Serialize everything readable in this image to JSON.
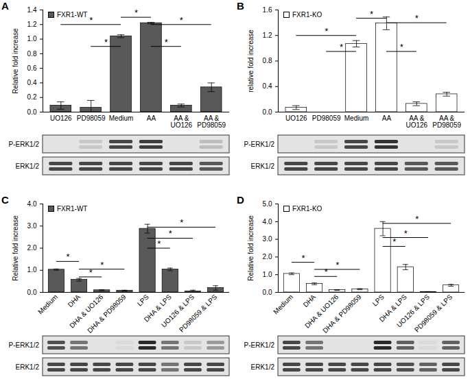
{
  "chart_data": [
    {
      "type": "bar",
      "title": "A",
      "y_label": "Relative fold increase",
      "legend": "top-left",
      "categories": [
        "UO126",
        "PD98059",
        "Medium",
        "AA",
        "AA & UO126",
        "AA & PD98059"
      ],
      "series": [
        {
          "name": "FXR1-WT",
          "color": "#595959",
          "values": [
            0.09,
            0.06,
            1.04,
            1.22,
            0.09,
            0.34
          ],
          "errors": [
            0.05,
            0.1,
            0.02,
            0.01,
            0.02,
            0.06
          ]
        }
      ],
      "ylim": [
        0,
        1.4
      ],
      "yticks": [
        {
          "value": 0,
          "label": "0.0"
        },
        {
          "value": 0.2,
          "label": "0.2"
        },
        {
          "value": 0.4,
          "label": "0.4"
        },
        {
          "value": 0.6,
          "label": "0.6"
        },
        {
          "value": 0.8,
          "label": "0.8"
        },
        {
          "value": 1,
          "label": "1.0"
        },
        {
          "value": 1.2,
          "label": "1.2"
        },
        {
          "value": 1.4,
          "label": "1.4"
        }
      ],
      "significance": [
        {
          "from": "UO126",
          "to": "Medium",
          "y": 1.2,
          "label": "*"
        },
        {
          "from": "PD98059",
          "to": "Medium",
          "y": 0.9,
          "label": "*"
        },
        {
          "from": "Medium",
          "to": "AA",
          "y": 1.3,
          "label": "*"
        },
        {
          "from": "AA",
          "to": "AA & PD98059",
          "y": 1.2,
          "label": "*"
        },
        {
          "from": "AA",
          "to": "AA & UO126",
          "y": 0.9,
          "label": "*"
        }
      ],
      "blots": [
        {
          "label": "P-ERK1/2",
          "intensity": [
            0,
            0.15,
            0.85,
            0.9,
            0,
            0.2
          ]
        },
        {
          "label": "ERK1/2",
          "intensity": [
            0.85,
            0.85,
            0.85,
            0.85,
            0.85,
            0.75
          ]
        }
      ]
    },
    {
      "type": "bar",
      "title": "B",
      "y_label": "relative fold increase",
      "legend": "top-left",
      "categories": [
        "UO126",
        "PD98059",
        "Medium",
        "AA",
        "AA & UO126",
        "AA & PD98059"
      ],
      "series": [
        {
          "name": "FXR1-KO",
          "color": "#ffffff",
          "values": [
            0.07,
            0.0,
            1.07,
            1.39,
            0.13,
            0.28
          ],
          "errors": [
            0.03,
            0.0,
            0.05,
            0.1,
            0.03,
            0.03
          ]
        }
      ],
      "ylim": [
        0,
        1.6
      ],
      "yticks": [
        {
          "value": 0,
          "label": "0.0"
        },
        {
          "value": 0.4,
          "label": "0.4"
        },
        {
          "value": 0.8,
          "label": "0.8"
        },
        {
          "value": 1.2,
          "label": "1.2"
        },
        {
          "value": 1.6,
          "label": "1.6"
        }
      ],
      "significance": [
        {
          "from": "UO126",
          "to": "Medium",
          "y": 1.2,
          "label": "*"
        },
        {
          "from": "PD98059",
          "to": "Medium",
          "y": 0.95,
          "label": "*"
        },
        {
          "from": "Medium",
          "to": "AA",
          "y": 1.47,
          "label": "*"
        },
        {
          "from": "AA",
          "to": "AA & PD98059",
          "y": 1.4,
          "label": "*"
        },
        {
          "from": "AA",
          "to": "AA & UO126",
          "y": 0.95,
          "label": "*"
        }
      ],
      "blots": [
        {
          "label": "P-ERK1/2",
          "intensity": [
            0,
            0.15,
            0.85,
            0.95,
            0,
            0.15
          ]
        },
        {
          "label": "ERK1/2",
          "intensity": [
            0.85,
            0.85,
            0.85,
            0.85,
            0.75,
            0.75
          ]
        }
      ]
    },
    {
      "type": "bar",
      "title": "C",
      "y_label": "Relative fold increase",
      "legend": "top-left",
      "categories": [
        "Medium",
        "DHA",
        "DHA & UO126",
        "DHA & PD98059",
        "LPS",
        "DHA & LPS",
        "UO126 & LPS",
        "PD98059 & LPS"
      ],
      "series": [
        {
          "name": "FXR1-WT",
          "color": "#595959",
          "values": [
            1.03,
            0.57,
            0.1,
            0.08,
            2.88,
            1.04,
            0.05,
            0.2
          ],
          "errors": [
            0.03,
            0.06,
            0.02,
            0.02,
            0.2,
            0.06,
            0.05,
            0.1
          ]
        }
      ],
      "ylim": [
        0,
        4
      ],
      "yticks": [
        {
          "value": 0,
          "label": "0.0"
        },
        {
          "value": 1,
          "label": "1.0"
        },
        {
          "value": 2,
          "label": "2.0"
        },
        {
          "value": 3,
          "label": "3.0"
        },
        {
          "value": 4,
          "label": "4.0"
        }
      ],
      "significance": [
        {
          "from": "Medium",
          "to": "DHA",
          "y": 1.4,
          "label": "*"
        },
        {
          "from": "DHA",
          "to": "DHA & UO126",
          "y": 0.7,
          "label": "*"
        },
        {
          "from": "DHA",
          "to": "DHA & PD98059",
          "y": 1.05,
          "label": "*"
        },
        {
          "from": "LPS",
          "to": "DHA & LPS",
          "y": 2.0,
          "label": "*"
        },
        {
          "from": "LPS",
          "to": "UO126 & LPS",
          "y": 2.45,
          "label": "*"
        },
        {
          "from": "LPS",
          "to": "PD98059 & LPS",
          "y": 2.95,
          "label": "*"
        }
      ],
      "blots": [
        {
          "label": "P-ERK1/2",
          "intensity": [
            0.8,
            0.6,
            0,
            0.05,
            1,
            0.6,
            0.15,
            0.4
          ]
        },
        {
          "label": "ERK1/2",
          "intensity": [
            0.85,
            0.85,
            0.85,
            0.85,
            0.85,
            0.6,
            0.85,
            0.85
          ]
        }
      ]
    },
    {
      "type": "bar",
      "title": "D",
      "y_label": "Relative fold increase",
      "legend": "top-left",
      "categories": [
        "Medium",
        "DHA",
        "DHA & UO126",
        "DHA & PD98059",
        "LPS",
        "DHA & LPS",
        "UO126 & LPS",
        "PD98059 & LPS"
      ],
      "series": [
        {
          "name": "FXR1-KO",
          "color": "#ffffff",
          "values": [
            1.05,
            0.48,
            0.13,
            0.18,
            3.6,
            1.43,
            0.03,
            0.4
          ],
          "errors": [
            0.05,
            0.05,
            0.02,
            0.03,
            0.4,
            0.15,
            0.01,
            0.05
          ]
        }
      ],
      "ylim": [
        0,
        5
      ],
      "yticks": [
        {
          "value": 0,
          "label": "0.0"
        },
        {
          "value": 1,
          "label": "1.0"
        },
        {
          "value": 2,
          "label": "2.0"
        },
        {
          "value": 3,
          "label": "3.0"
        },
        {
          "value": 4,
          "label": "4.0"
        },
        {
          "value": 5,
          "label": "5.0"
        }
      ],
      "significance": [
        {
          "from": "Medium",
          "to": "DHA",
          "y": 1.7,
          "label": "*"
        },
        {
          "from": "DHA",
          "to": "DHA & UO126",
          "y": 0.9,
          "label": "*"
        },
        {
          "from": "DHA",
          "to": "DHA & PD98059",
          "y": 1.3,
          "label": "*"
        },
        {
          "from": "LPS",
          "to": "DHA & LPS",
          "y": 2.6,
          "label": "*"
        },
        {
          "from": "LPS",
          "to": "UO126 & LPS",
          "y": 3.1,
          "label": "*"
        },
        {
          "from": "LPS",
          "to": "PD98059 & LPS",
          "y": 3.9,
          "label": "*"
        }
      ],
      "blots": [
        {
          "label": "P-ERK1/2",
          "intensity": [
            0.85,
            0.6,
            0,
            0,
            1,
            0.7,
            0.05,
            0.7
          ]
        },
        {
          "label": "ERK1/2",
          "intensity": [
            0.85,
            0.85,
            0.85,
            0.85,
            0.85,
            0.8,
            0.7,
            0.85
          ]
        }
      ]
    }
  ]
}
